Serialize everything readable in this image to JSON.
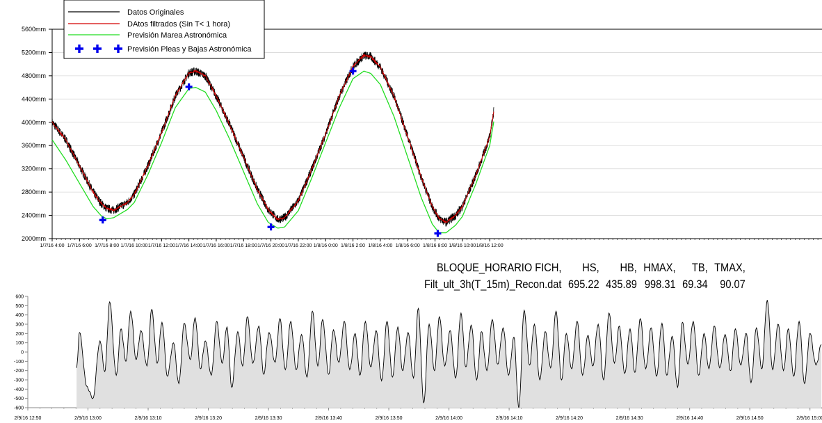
{
  "chart_data": [
    {
      "type": "line",
      "legend_position": "top-left",
      "y_unit": "mm",
      "ylim": [
        2000,
        5600
      ],
      "yticks": [
        "2000mm",
        "2400mm",
        "2800mm",
        "3200mm",
        "3600mm",
        "4000mm",
        "4400mm",
        "4800mm",
        "5200mm",
        "5600mm"
      ],
      "x_range_hours": [
        4,
        60.3
      ],
      "xticks": [
        "1/7/16 4:00",
        "1/7/16 6:00",
        "1/7/16 8:00",
        "1/7/16 10:00",
        "1/7/16 12:00",
        "1/7/16 14:00",
        "1/7/16 16:00",
        "1/7/16 18:00",
        "1/7/16 20:00",
        "1/7/16 22:00",
        "1/8/16 0:00",
        "1/8/16 2:00",
        "1/8/16 4:00",
        "1/8/16 6:00",
        "1/8/16 8:00",
        "1/8/16 10:00",
        "1/8/16 12:00"
      ],
      "xtick_hours": [
        4,
        6,
        8,
        10,
        12,
        14,
        16,
        18,
        20,
        22,
        24,
        26,
        28,
        30,
        32,
        34,
        36
      ],
      "series": [
        {
          "name": "Datos Originales",
          "color": "#000000",
          "style": "noisy-line"
        },
        {
          "name": "DAtos filtrados (Sin T< 1 hora)",
          "color": "#d40000",
          "style": "line"
        },
        {
          "name": "Previsión Marea Astronómica",
          "color": "#22dd22",
          "style": "line"
        },
        {
          "name": "Previsión Pleas y Bajas Astronómica",
          "color": "#0000ee",
          "style": "plus-marker"
        }
      ],
      "filtered_curve": [
        [
          4.0,
          4000
        ],
        [
          5.0,
          3700
        ],
        [
          6.0,
          3250
        ],
        [
          7.0,
          2800
        ],
        [
          7.6,
          2600
        ],
        [
          8.0,
          2520
        ],
        [
          8.5,
          2490
        ],
        [
          9.5,
          2620
        ],
        [
          10.0,
          2760
        ],
        [
          11.0,
          3250
        ],
        [
          12.0,
          3820
        ],
        [
          13.0,
          4450
        ],
        [
          14.0,
          4850
        ],
        [
          14.5,
          4880
        ],
        [
          15.2,
          4800
        ],
        [
          16.0,
          4450
        ],
        [
          17.0,
          3950
        ],
        [
          18.0,
          3400
        ],
        [
          19.0,
          2850
        ],
        [
          19.8,
          2500
        ],
        [
          20.5,
          2330
        ],
        [
          21.0,
          2360
        ],
        [
          22.0,
          2650
        ],
        [
          23.0,
          3200
        ],
        [
          24.0,
          3800
        ],
        [
          25.0,
          4450
        ],
        [
          26.0,
          4960
        ],
        [
          26.8,
          5150
        ],
        [
          27.3,
          5130
        ],
        [
          28.0,
          4950
        ],
        [
          29.0,
          4450
        ],
        [
          30.0,
          3750
        ],
        [
          31.0,
          3050
        ],
        [
          31.8,
          2550
        ],
        [
          32.3,
          2350
        ],
        [
          32.8,
          2280
        ],
        [
          33.5,
          2400
        ],
        [
          34.0,
          2550
        ],
        [
          35.0,
          3100
        ],
        [
          36.0,
          3750
        ],
        [
          36.3,
          4200
        ]
      ],
      "astronomical_curve": [
        [
          4.0,
          3700
        ],
        [
          5.0,
          3350
        ],
        [
          6.0,
          2950
        ],
        [
          7.0,
          2550
        ],
        [
          7.6,
          2390
        ],
        [
          8.0,
          2340
        ],
        [
          8.5,
          2360
        ],
        [
          9.5,
          2500
        ],
        [
          10.0,
          2620
        ],
        [
          11.0,
          3100
        ],
        [
          12.0,
          3650
        ],
        [
          13.0,
          4250
        ],
        [
          14.0,
          4580
        ],
        [
          14.5,
          4600
        ],
        [
          15.2,
          4520
        ],
        [
          16.0,
          4200
        ],
        [
          17.0,
          3700
        ],
        [
          18.0,
          3150
        ],
        [
          19.0,
          2600
        ],
        [
          19.8,
          2280
        ],
        [
          20.5,
          2180
        ],
        [
          21.0,
          2200
        ],
        [
          22.0,
          2480
        ],
        [
          23.0,
          3050
        ],
        [
          24.0,
          3650
        ],
        [
          25.0,
          4250
        ],
        [
          26.0,
          4750
        ],
        [
          26.8,
          4880
        ],
        [
          27.3,
          4840
        ],
        [
          28.0,
          4650
        ],
        [
          29.0,
          4100
        ],
        [
          30.0,
          3400
        ],
        [
          31.0,
          2700
        ],
        [
          31.8,
          2250
        ],
        [
          32.3,
          2100
        ],
        [
          32.8,
          2100
        ],
        [
          33.5,
          2230
        ],
        [
          34.0,
          2380
        ],
        [
          35.0,
          2950
        ],
        [
          36.0,
          3600
        ],
        [
          36.3,
          4020
        ]
      ],
      "astronomical_extremes": [
        [
          7.7,
          2320
        ],
        [
          14.0,
          4610
        ],
        [
          20.0,
          2200
        ],
        [
          26.0,
          4880
        ],
        [
          32.2,
          2090
        ]
      ]
    },
    {
      "type": "area",
      "ylim": [
        -600,
        600
      ],
      "yticks": [
        600,
        500,
        400,
        300,
        200,
        100,
        0,
        -100,
        -200,
        -300,
        -400,
        -500,
        -600
      ],
      "x_range_minutes": [
        770,
        902
      ],
      "xticks": [
        "2/9/16 12:50",
        "2/9/16 13:00",
        "2/9/16 13:10",
        "2/9/16 13:20",
        "2/9/16 13:30",
        "2/9/16 13:40",
        "2/9/16 13:50",
        "2/9/16 14:00",
        "2/9/16 14:10",
        "2/9/16 14:20",
        "2/9/16 14:30",
        "2/9/16 14:40",
        "2/9/16 14:50",
        "2/9/16 15:00"
      ],
      "xtick_minutes": [
        770,
        780,
        790,
        800,
        810,
        820,
        830,
        840,
        850,
        860,
        870,
        880,
        890,
        900
      ],
      "series": [
        {
          "color": "#000000",
          "fill": "#e0e0e0"
        }
      ],
      "peaks": [
        [
          778.1,
          -170
        ],
        [
          778.6,
          210
        ],
        [
          779.8,
          -370
        ],
        [
          780.8,
          -500
        ],
        [
          782.0,
          120
        ],
        [
          782.8,
          -210
        ],
        [
          783.6,
          540
        ],
        [
          784.7,
          -250
        ],
        [
          785.5,
          250
        ],
        [
          786.3,
          -100
        ],
        [
          787.1,
          440
        ],
        [
          788.0,
          -80
        ],
        [
          788.8,
          230
        ],
        [
          789.8,
          -150
        ],
        [
          790.6,
          460
        ],
        [
          791.5,
          -120
        ],
        [
          792.3,
          320
        ],
        [
          793.2,
          -260
        ],
        [
          794.2,
          100
        ],
        [
          795.1,
          -340
        ],
        [
          796.0,
          310
        ],
        [
          797.0,
          -80
        ],
        [
          797.8,
          370
        ],
        [
          798.7,
          -180
        ],
        [
          799.5,
          120
        ],
        [
          800.5,
          -250
        ],
        [
          801.4,
          330
        ],
        [
          802.3,
          -120
        ],
        [
          803.1,
          270
        ],
        [
          803.9,
          -380
        ],
        [
          804.9,
          220
        ],
        [
          805.7,
          -150
        ],
        [
          806.5,
          380
        ],
        [
          807.4,
          -120
        ],
        [
          808.4,
          280
        ],
        [
          809.2,
          -240
        ],
        [
          810.1,
          210
        ],
        [
          811.1,
          -110
        ],
        [
          811.9,
          360
        ],
        [
          812.8,
          -190
        ],
        [
          813.7,
          330
        ],
        [
          814.6,
          -190
        ],
        [
          815.5,
          190
        ],
        [
          816.4,
          -270
        ],
        [
          817.3,
          440
        ],
        [
          818.2,
          -150
        ],
        [
          819.0,
          350
        ],
        [
          820.0,
          -240
        ],
        [
          820.8,
          240
        ],
        [
          821.7,
          -110
        ],
        [
          822.6,
          330
        ],
        [
          823.5,
          -190
        ],
        [
          824.4,
          200
        ],
        [
          825.2,
          -250
        ],
        [
          826.1,
          330
        ],
        [
          827.0,
          -160
        ],
        [
          827.9,
          230
        ],
        [
          828.8,
          -310
        ],
        [
          829.7,
          330
        ],
        [
          830.6,
          -270
        ],
        [
          831.5,
          270
        ],
        [
          832.3,
          -200
        ],
        [
          833.2,
          210
        ],
        [
          834.1,
          -280
        ],
        [
          834.9,
          470
        ],
        [
          835.8,
          -550
        ],
        [
          836.7,
          300
        ],
        [
          837.6,
          -200
        ],
        [
          838.4,
          380
        ],
        [
          839.3,
          -150
        ],
        [
          840.2,
          230
        ],
        [
          841.1,
          -280
        ],
        [
          842.0,
          420
        ],
        [
          842.8,
          -160
        ],
        [
          843.7,
          290
        ],
        [
          844.6,
          -300
        ],
        [
          845.4,
          220
        ],
        [
          846.3,
          -200
        ],
        [
          847.2,
          350
        ],
        [
          848.1,
          -130
        ],
        [
          849.0,
          260
        ],
        [
          849.9,
          -250
        ],
        [
          850.8,
          160
        ],
        [
          851.6,
          -600
        ],
        [
          852.5,
          450
        ],
        [
          853.4,
          -140
        ],
        [
          854.2,
          300
        ],
        [
          855.1,
          -300
        ],
        [
          856.0,
          220
        ],
        [
          856.9,
          -170
        ],
        [
          857.8,
          440
        ],
        [
          858.7,
          -300
        ],
        [
          859.5,
          200
        ],
        [
          860.4,
          -180
        ],
        [
          861.3,
          330
        ],
        [
          862.2,
          -250
        ],
        [
          863.1,
          180
        ],
        [
          863.9,
          -150
        ],
        [
          864.8,
          300
        ],
        [
          865.7,
          -300
        ],
        [
          866.6,
          420
        ],
        [
          867.5,
          -120
        ],
        [
          868.3,
          280
        ],
        [
          869.2,
          -230
        ],
        [
          870.1,
          250
        ],
        [
          870.9,
          -220
        ],
        [
          871.8,
          360
        ],
        [
          872.7,
          -180
        ],
        [
          873.6,
          260
        ],
        [
          874.5,
          -260
        ],
        [
          875.4,
          310
        ],
        [
          876.2,
          -250
        ],
        [
          877.1,
          170
        ],
        [
          878.0,
          -380
        ],
        [
          878.8,
          320
        ],
        [
          879.7,
          -130
        ],
        [
          880.6,
          330
        ],
        [
          881.5,
          -250
        ],
        [
          882.4,
          200
        ],
        [
          883.2,
          -180
        ],
        [
          884.1,
          280
        ],
        [
          885.0,
          -170
        ],
        [
          885.9,
          190
        ],
        [
          886.8,
          -200
        ],
        [
          887.6,
          250
        ],
        [
          888.5,
          -140
        ],
        [
          889.4,
          200
        ],
        [
          890.2,
          -330
        ],
        [
          891.1,
          260
        ],
        [
          892.0,
          -180
        ],
        [
          892.9,
          560
        ],
        [
          893.8,
          -190
        ],
        [
          894.7,
          300
        ],
        [
          895.6,
          -200
        ],
        [
          896.4,
          250
        ],
        [
          897.3,
          -260
        ],
        [
          898.2,
          330
        ],
        [
          899.1,
          -340
        ],
        [
          900.0,
          200
        ],
        [
          901.0,
          -140
        ],
        [
          901.9,
          80
        ]
      ]
    }
  ],
  "stats": {
    "header": [
      "BLOQUE_HORARIO FICH,",
      "HS,",
      "HB,",
      "HMAX,",
      "TB,",
      "TMAX,"
    ],
    "row": [
      "Filt_ult_3h(T_15m)_Recon.dat",
      "695.22",
      "435.89",
      "998.31",
      "69.34",
      "90.07"
    ]
  }
}
